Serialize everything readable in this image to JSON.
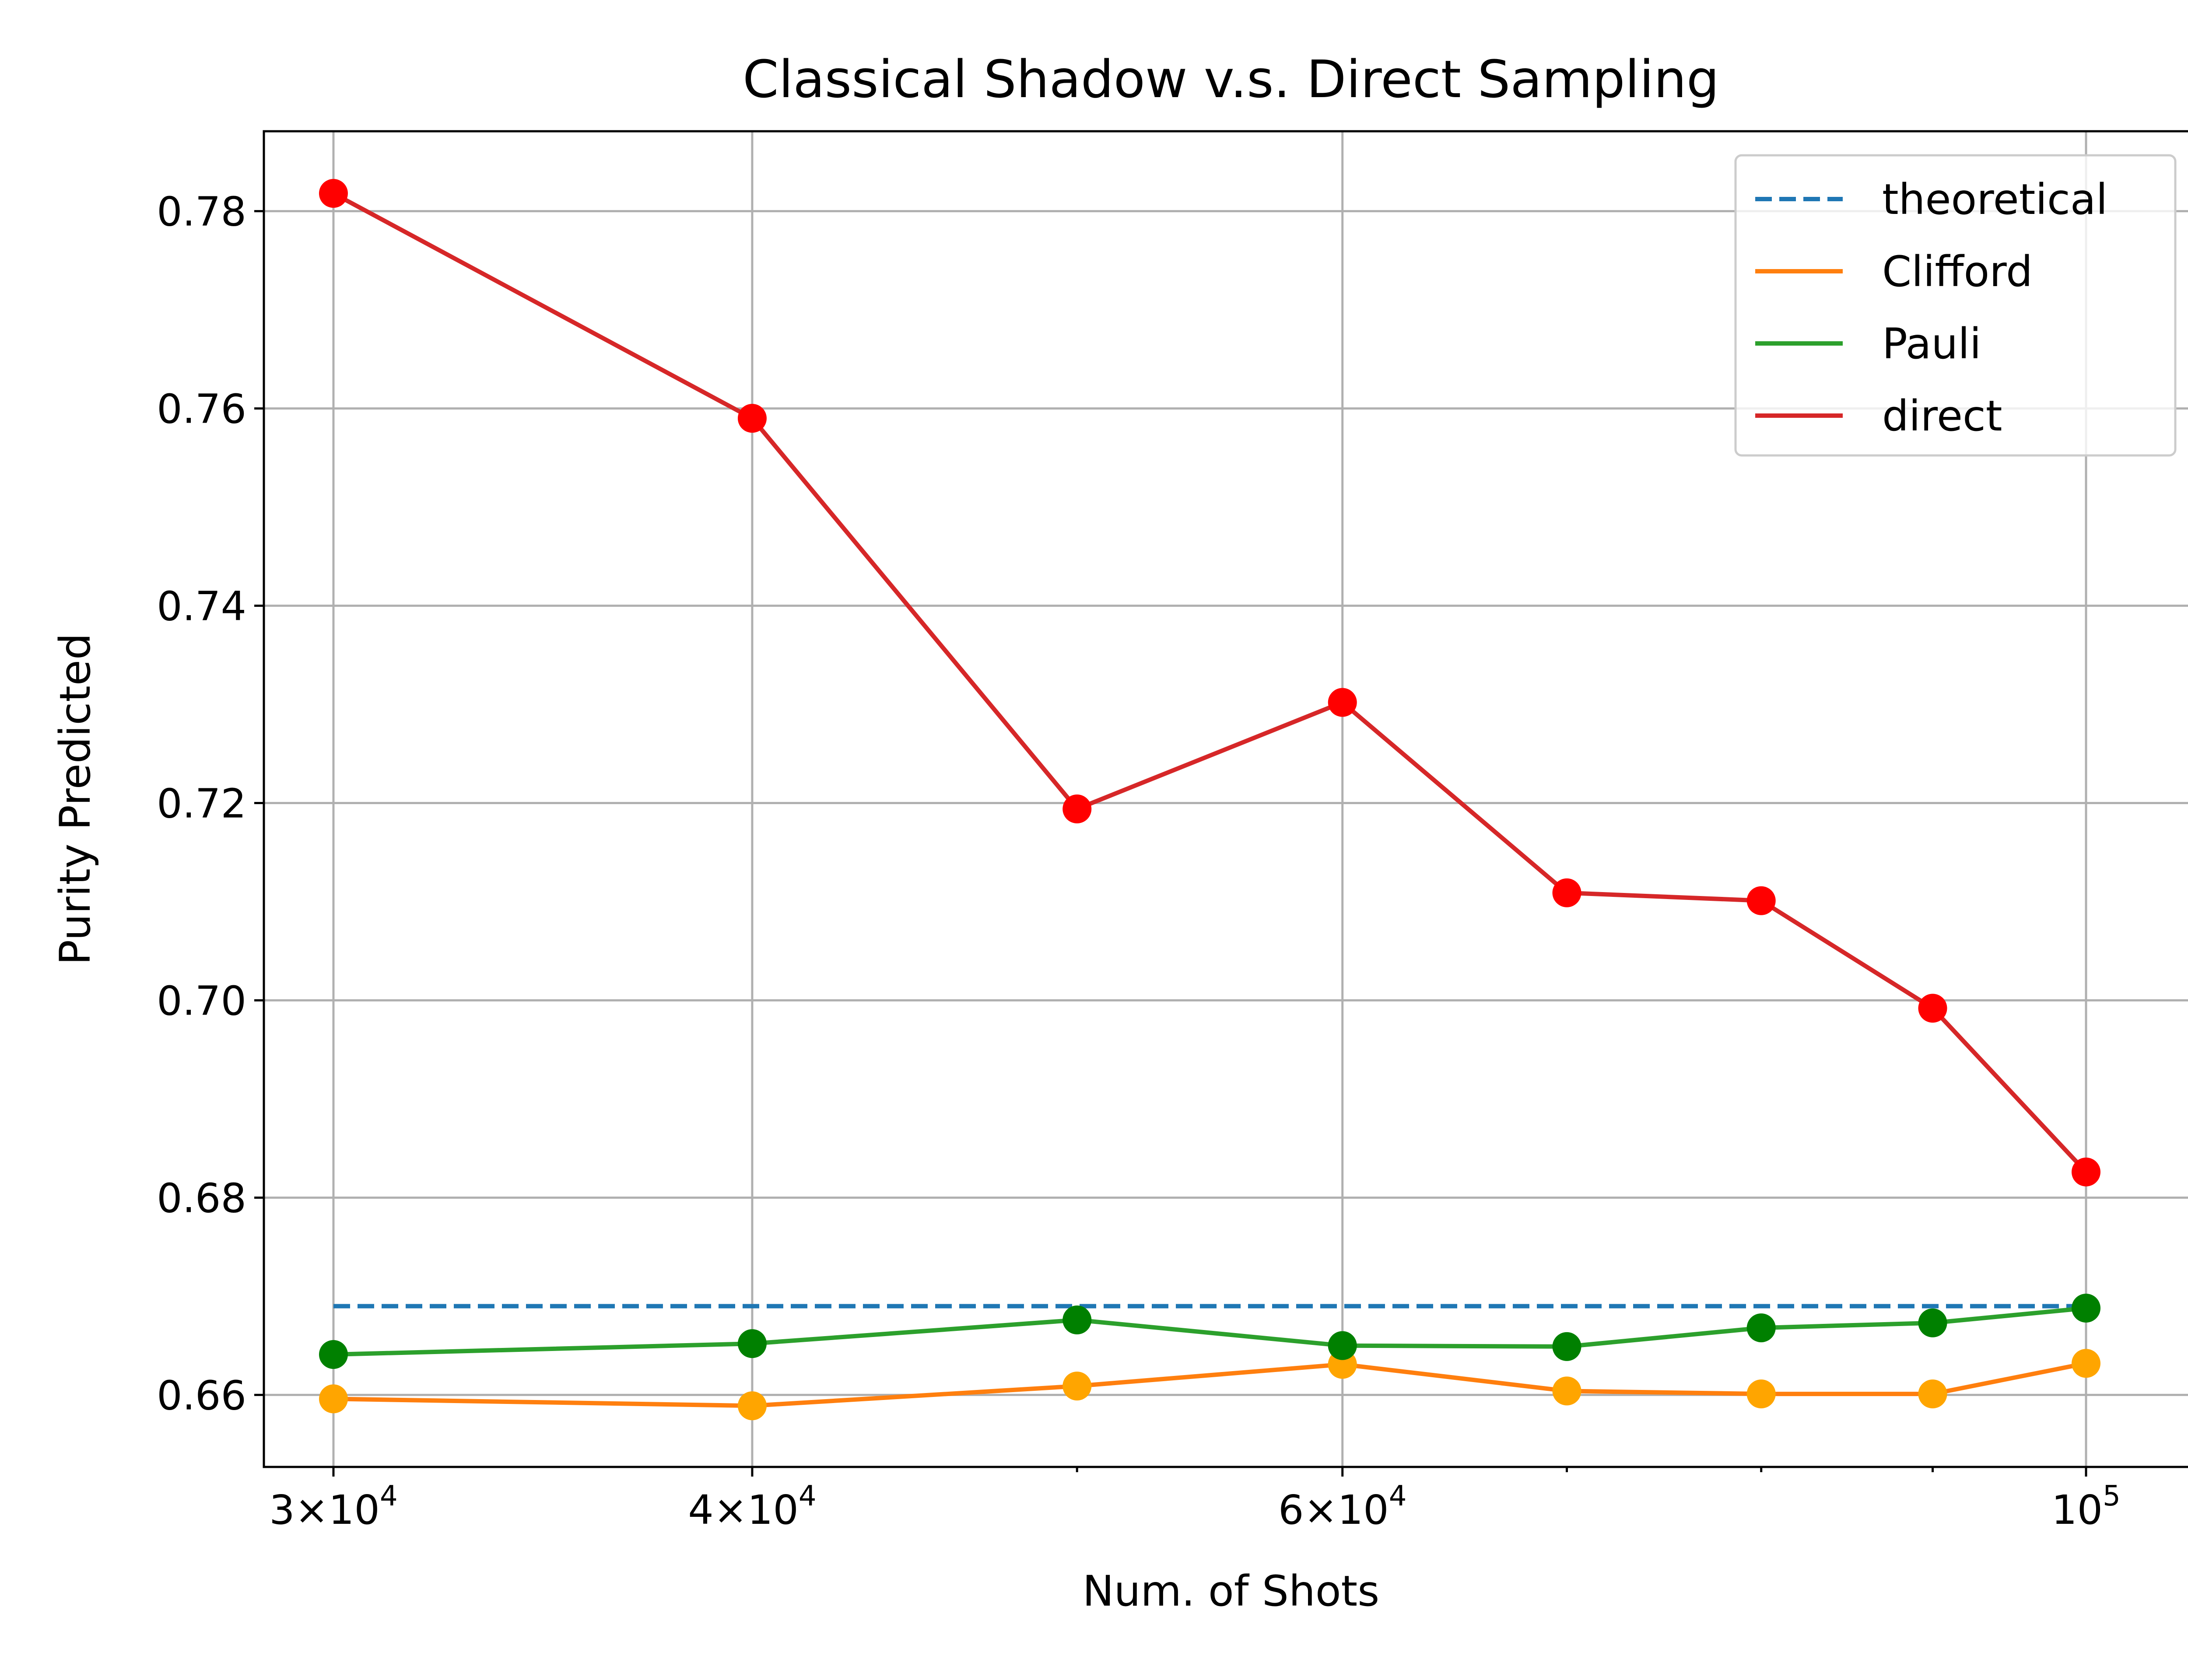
{
  "chart_data": {
    "type": "line",
    "title": "Classical Shadow v.s. Direct Sampling",
    "xlabel": "Num. of Shots",
    "ylabel": "Purity Predicted",
    "xscale": "log",
    "xlim": [
      28600,
      108000
    ],
    "ylim": [
      0.6527,
      0.7881
    ],
    "grid": true,
    "legend_position": "top-right",
    "x": [
      30000,
      40000,
      50000,
      60000,
      70000,
      80000,
      90000,
      100000
    ],
    "x_ticks": [
      {
        "value": 30000,
        "base": "3×10",
        "exp": "4"
      },
      {
        "value": 40000,
        "base": "4×10",
        "exp": "4"
      },
      {
        "value": 60000,
        "base": "6×10",
        "exp": "4"
      },
      {
        "value": 100000,
        "base": "10",
        "exp": "5"
      }
    ],
    "x_minor_ticks": [
      50000,
      70000,
      80000,
      90000
    ],
    "y_ticks": [
      {
        "value": 0.66,
        "label": "0.66"
      },
      {
        "value": 0.68,
        "label": "0.68"
      },
      {
        "value": 0.7,
        "label": "0.70"
      },
      {
        "value": 0.72,
        "label": "0.72"
      },
      {
        "value": 0.74,
        "label": "0.74"
      },
      {
        "value": 0.76,
        "label": "0.76"
      },
      {
        "value": 0.78,
        "label": "0.78"
      }
    ],
    "series": [
      {
        "name": "theoretical",
        "style": "dashed",
        "color": "#1f77b4",
        "marker_color": null,
        "values": [
          0.669,
          0.669,
          0.669,
          0.669,
          0.669,
          0.669,
          0.669,
          0.669
        ]
      },
      {
        "name": "Clifford",
        "style": "solid",
        "color": "#ff7f0e",
        "marker_color": "#ffa500",
        "values": [
          0.6596,
          0.6589,
          0.6609,
          0.6631,
          0.6604,
          0.6601,
          0.6601,
          0.6632
        ]
      },
      {
        "name": "Pauli",
        "style": "solid",
        "color": "#2ca02c",
        "marker_color": "#008000",
        "values": [
          0.6641,
          0.6652,
          0.6676,
          0.665,
          0.6649,
          0.6668,
          0.6673,
          0.6688
        ]
      },
      {
        "name": "direct",
        "style": "solid",
        "color": "#d62728",
        "marker_color": "#ff0000",
        "values": [
          0.7818,
          0.759,
          0.7194,
          0.7302,
          0.7109,
          0.7101,
          0.6992,
          0.6826
        ]
      }
    ]
  }
}
